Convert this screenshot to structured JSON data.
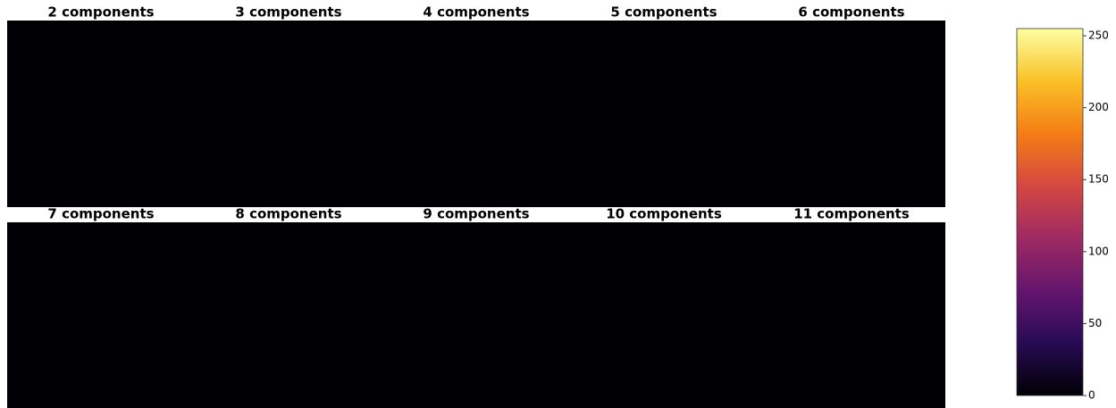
{
  "chart_data": {
    "type": "image-grid",
    "panel_titles": [
      "2 components",
      "3 components",
      "4 components",
      "5 components",
      "6 components",
      "7 components",
      "8 components",
      "9 components",
      "10 components",
      "11 components"
    ],
    "colormap": "inferno",
    "colorbar": {
      "ylim": [
        0,
        255
      ],
      "yticks": [
        0,
        50,
        100,
        150,
        200,
        250
      ]
    }
  }
}
